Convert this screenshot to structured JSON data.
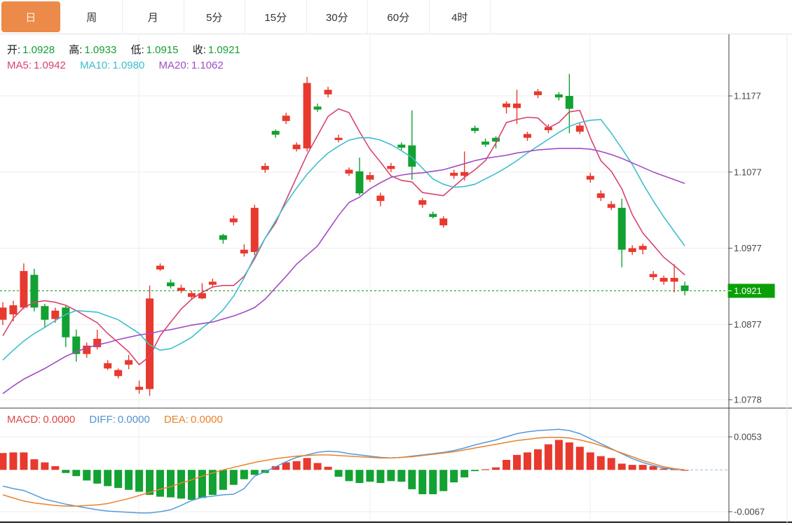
{
  "tabs": {
    "items": [
      {
        "key": "tab-day",
        "label": "日",
        "active": true
      },
      {
        "key": "tab-week",
        "label": "周",
        "active": false
      },
      {
        "key": "tab-month",
        "label": "月",
        "active": false
      },
      {
        "key": "tab-5min",
        "label": "5分",
        "active": false
      },
      {
        "key": "tab-15min",
        "label": "15分",
        "active": false
      },
      {
        "key": "tab-30min",
        "label": "30分",
        "active": false
      },
      {
        "key": "tab-60min",
        "label": "60分",
        "active": false
      },
      {
        "key": "tab-4hour",
        "label": "4时",
        "active": false
      }
    ]
  },
  "legend_main": {
    "open_label": "开:",
    "open_value": "1.0928",
    "high_label": "高:",
    "high_value": "1.0933",
    "low_label": "低:",
    "low_value": "1.0915",
    "close_label": "收:",
    "close_value": "1.0921",
    "ma5_label": "MA5:",
    "ma5_value": "1.0942",
    "ma10_label": "MA10:",
    "ma10_value": "1.0980",
    "ma20_label": "MA20:",
    "ma20_value": "1.1062"
  },
  "legend_macd": {
    "macd_label": "MACD:",
    "macd_value": "0.0000",
    "diff_label": "DIFF:",
    "diff_value": "0.0000",
    "dea_label": "DEA:",
    "dea_value": "0.0000"
  },
  "colors": {
    "up": "#e8392e",
    "down": "#12a132",
    "price_tag": "#0aa005",
    "dotted_price_line": "#1fa32a",
    "ma5": "#d8436e",
    "ma10": "#3dbecd",
    "ma20": "#a34cc4",
    "diff_line": "#5599dd",
    "dea_line": "#e8832d",
    "active_tab": "#ec8a4a"
  },
  "chart_data": {
    "type": "candlestick_with_macd",
    "title": "",
    "legend_position": "top-left overlay",
    "grid": true,
    "price_axis": {
      "side": "right",
      "ticks": [
        {
          "label": "1.1177",
          "value": 1.1177
        },
        {
          "label": "1.1077",
          "value": 1.1077
        },
        {
          "label": "1.0977",
          "value": 1.0977
        },
        {
          "label": "1.0877",
          "value": 1.0877
        },
        {
          "label": "1.0778",
          "value": 1.0778
        }
      ],
      "range": [
        1.074,
        1.1225
      ]
    },
    "macd_axis": {
      "side": "right",
      "ticks": [
        {
          "label": "0.0053",
          "value": 0.0053
        },
        {
          "label": "-0.0067",
          "value": -0.0067
        }
      ]
    },
    "current_price": {
      "label": "1.0921",
      "value": 1.0921
    },
    "candles_ohlc": [
      [
        1.0883,
        1.0906,
        1.0876,
        1.0899
      ],
      [
        1.089,
        1.0908,
        1.0881,
        1.0902
      ],
      [
        1.0899,
        1.0957,
        1.0897,
        1.0947
      ],
      [
        1.0942,
        1.095,
        1.0894,
        1.0899
      ],
      [
        1.0901,
        1.0904,
        1.0873,
        1.0883
      ],
      [
        1.0884,
        1.0899,
        1.0879,
        1.0895
      ],
      [
        1.0899,
        1.0902,
        1.0847,
        1.086
      ],
      [
        1.0861,
        1.087,
        1.0828,
        1.0838
      ],
      [
        1.0838,
        1.0853,
        1.0833,
        1.0849
      ],
      [
        1.0847,
        1.087,
        1.0844,
        1.0858
      ],
      [
        1.0819,
        1.083,
        1.0817,
        1.0826
      ],
      [
        1.0809,
        1.0819,
        1.0806,
        1.0817
      ],
      [
        1.0824,
        1.0837,
        1.0818,
        1.083
      ],
      [
        1.0791,
        1.0803,
        1.0786,
        1.0795
      ],
      [
        1.0792,
        1.0928,
        1.0783,
        1.0911
      ],
      [
        1.0949,
        1.0957,
        1.0947,
        1.0954
      ],
      [
        1.0932,
        1.0936,
        1.0924,
        1.0927
      ],
      [
        1.0921,
        1.0929,
        1.0918,
        1.0925
      ],
      [
        1.0913,
        1.0921,
        1.091,
        1.0918
      ],
      [
        1.0911,
        1.0931,
        1.091,
        1.0918
      ],
      [
        1.0929,
        1.0937,
        1.0925,
        1.0933
      ],
      [
        1.0994,
        1.0996,
        1.0983,
        1.0988
      ],
      [
        1.1011,
        1.102,
        1.1007,
        1.1016
      ],
      [
        1.097,
        1.0982,
        1.0966,
        1.0975
      ],
      [
        1.0972,
        1.1034,
        1.0968,
        1.103
      ],
      [
        1.108,
        1.1089,
        1.1076,
        1.1085
      ],
      [
        1.1131,
        1.1133,
        1.1122,
        1.1126
      ],
      [
        1.1144,
        1.1155,
        1.114,
        1.1151
      ],
      [
        1.1107,
        1.1116,
        1.1104,
        1.1113
      ],
      [
        1.1108,
        1.1202,
        1.1104,
        1.1194
      ],
      [
        1.1163,
        1.1167,
        1.1156,
        1.1159
      ],
      [
        1.1179,
        1.1189,
        1.1175,
        1.1185
      ],
      [
        1.1119,
        1.1126,
        1.1116,
        1.1122
      ],
      [
        1.1075,
        1.1083,
        1.1072,
        1.108
      ],
      [
        1.1078,
        1.1096,
        1.1046,
        1.1049
      ],
      [
        1.1067,
        1.1077,
        1.1064,
        1.1073
      ],
      [
        1.1039,
        1.105,
        1.1032,
        1.1046
      ],
      [
        1.1081,
        1.1089,
        1.1077,
        1.1085
      ],
      [
        1.1113,
        1.1116,
        1.1106,
        1.1109
      ],
      [
        1.1112,
        1.1158,
        1.1067,
        1.1084
      ],
      [
        1.1034,
        1.1043,
        1.103,
        1.104
      ],
      [
        1.1022,
        1.1025,
        1.1016,
        1.1018
      ],
      [
        1.1007,
        1.1019,
        1.1004,
        1.1016
      ],
      [
        1.1072,
        1.108,
        1.1068,
        1.1076
      ],
      [
        1.1072,
        1.1104,
        1.1066,
        1.1077
      ],
      [
        1.1135,
        1.1138,
        1.1128,
        1.1131
      ],
      [
        1.1117,
        1.1121,
        1.111,
        1.1113
      ],
      [
        1.1122,
        1.1124,
        1.1108,
        1.1117
      ],
      [
        1.1162,
        1.117,
        1.1154,
        1.1167
      ],
      [
        1.1161,
        1.1185,
        1.114,
        1.1167
      ],
      [
        1.1122,
        1.113,
        1.1118,
        1.1127
      ],
      [
        1.1178,
        1.1186,
        1.1174,
        1.1183
      ],
      [
        1.1132,
        1.114,
        1.1128,
        1.1136
      ],
      [
        1.1179,
        1.1182,
        1.1171,
        1.1175
      ],
      [
        1.1177,
        1.1206,
        1.1128,
        1.116
      ],
      [
        1.113,
        1.1141,
        1.1127,
        1.1138
      ],
      [
        1.1067,
        1.1076,
        1.1063,
        1.1072
      ],
      [
        1.1043,
        1.1053,
        1.1039,
        1.1049
      ],
      [
        1.103,
        1.1039,
        1.1027,
        1.1035
      ],
      [
        1.103,
        1.1042,
        1.0952,
        1.0975
      ],
      [
        1.0972,
        1.0981,
        1.0968,
        1.0977
      ],
      [
        1.0975,
        1.0983,
        1.0969,
        1.098
      ],
      [
        1.0939,
        1.0947,
        1.0935,
        1.0943
      ],
      [
        1.0933,
        1.0941,
        1.0929,
        1.0938
      ],
      [
        1.0933,
        1.0956,
        1.0919,
        1.0938
      ],
      [
        1.0928,
        1.0933,
        1.0915,
        1.0921
      ]
    ],
    "series": [
      {
        "name": "MA5",
        "values": [
          1.0862,
          1.0885,
          1.0899,
          1.0906,
          1.0908,
          1.0906,
          1.0902,
          1.0895,
          1.0887,
          1.0879,
          1.0865,
          1.0853,
          1.0841,
          1.0824,
          1.0835,
          1.0862,
          1.088,
          1.0897,
          1.091,
          1.0919,
          1.0926,
          1.0928,
          1.0928,
          1.094,
          1.0963,
          1.099,
          1.101,
          1.104,
          1.107,
          1.11,
          1.1125,
          1.115,
          1.116,
          1.1155,
          1.113,
          1.1107,
          1.109,
          1.1072,
          1.1066,
          1.1064,
          1.105,
          1.1048,
          1.1046,
          1.1058,
          1.107,
          1.108,
          1.1092,
          1.1115,
          1.1142,
          1.1146,
          1.1149,
          1.1148,
          1.1135,
          1.1142,
          1.1156,
          1.1158,
          1.1122,
          1.1092,
          1.1078,
          1.1055,
          1.1021,
          1.0997,
          1.0981,
          1.0965,
          1.0954,
          1.0942
        ]
      },
      {
        "name": "MA10",
        "values": [
          1.083,
          1.0843,
          1.0855,
          1.0865,
          1.0873,
          1.0882,
          1.089,
          1.0895,
          1.0894,
          1.0893,
          1.0888,
          1.0883,
          1.0874,
          1.0865,
          1.085,
          1.0843,
          1.0845,
          1.0852,
          1.086,
          1.0872,
          1.0883,
          1.0896,
          1.0914,
          1.0938,
          1.0966,
          1.099,
          1.1013,
          1.1036,
          1.1056,
          1.1074,
          1.1089,
          1.1102,
          1.1111,
          1.1119,
          1.1122,
          1.1122,
          1.1119,
          1.1113,
          1.1105,
          1.1096,
          1.1082,
          1.1068,
          1.1061,
          1.1057,
          1.1058,
          1.1061,
          1.1068,
          1.1075,
          1.1083,
          1.1092,
          1.1102,
          1.1111,
          1.112,
          1.1129,
          1.1137,
          1.1142,
          1.1145,
          1.1146,
          1.1128,
          1.1108,
          1.1087,
          1.1062,
          1.1039,
          1.1018,
          1.0999,
          1.098
        ]
      },
      {
        "name": "MA20",
        "values": [
          1.0786,
          1.0796,
          1.0805,
          1.0812,
          1.0819,
          1.0827,
          1.0835,
          1.0841,
          1.0846,
          1.085,
          1.0853,
          1.0857,
          1.086,
          1.0863,
          1.0865,
          1.0868,
          1.087,
          1.0873,
          1.0876,
          1.0878,
          1.088,
          1.0884,
          1.0888,
          1.0893,
          1.0899,
          1.091,
          1.0925,
          1.094,
          1.0956,
          1.0968,
          1.098,
          1.1,
          1.102,
          1.1037,
          1.1044,
          1.1055,
          1.1063,
          1.107,
          1.1073,
          1.1075,
          1.1076,
          1.1078,
          1.108,
          1.1084,
          1.1088,
          1.1092,
          1.1095,
          1.1097,
          1.1099,
          1.1102,
          1.1104,
          1.1106,
          1.1107,
          1.1108,
          1.1108,
          1.1108,
          1.1107,
          1.1104,
          1.11,
          1.1095,
          1.1089,
          1.1083,
          1.1077,
          1.1072,
          1.1067,
          1.1062
        ]
      }
    ],
    "macd": {
      "hist": [
        0.0027,
        0.0028,
        0.0028,
        0.0017,
        0.0012,
        0.0006,
        -0.0005,
        -0.001,
        -0.0017,
        -0.0022,
        -0.0026,
        -0.0029,
        -0.0032,
        -0.0035,
        -0.004,
        -0.0043,
        -0.0044,
        -0.0046,
        -0.0048,
        -0.0045,
        -0.004,
        -0.0032,
        -0.0024,
        -0.0015,
        -0.0008,
        -0.0005,
        0.0006,
        0.0012,
        0.0014,
        0.0019,
        0.0011,
        0.0005,
        -0.0011,
        -0.0018,
        -0.0021,
        -0.0019,
        -0.0021,
        -0.0018,
        -0.0019,
        -0.0031,
        -0.0039,
        -0.0039,
        -0.0034,
        -0.002,
        -0.0012,
        -0.0002,
        0.0001,
        0.0004,
        0.0016,
        0.0024,
        0.0028,
        0.0033,
        0.0041,
        0.0048,
        0.0044,
        0.0037,
        0.0028,
        0.0022,
        0.0019,
        0.001,
        0.0008,
        0.0008,
        0.0006,
        0.0002,
        0.0001,
        0.0
      ],
      "diff": [
        -0.0026,
        -0.003,
        -0.0033,
        -0.004,
        -0.0047,
        -0.0051,
        -0.0055,
        -0.0058,
        -0.0061,
        -0.0064,
        -0.0066,
        -0.0067,
        -0.0068,
        -0.0069,
        -0.0069,
        -0.0067,
        -0.0064,
        -0.0057,
        -0.0049,
        -0.0044,
        -0.0042,
        -0.004,
        -0.0039,
        -0.003,
        -0.001,
        -0.0003,
        0.0005,
        0.0013,
        0.002,
        0.0024,
        0.0028,
        0.003,
        0.0029,
        0.0026,
        0.0024,
        0.0022,
        0.002,
        0.0019,
        0.002,
        0.0022,
        0.0024,
        0.0026,
        0.0028,
        0.0031,
        0.0035,
        0.004,
        0.0044,
        0.0048,
        0.0053,
        0.0058,
        0.0061,
        0.0063,
        0.0064,
        0.0065,
        0.0063,
        0.0058,
        0.005,
        0.0042,
        0.0034,
        0.0026,
        0.0018,
        0.0012,
        0.0007,
        0.0003,
        0.0001,
        0.0
      ],
      "dea": [
        -0.004,
        -0.0045,
        -0.005,
        -0.0053,
        -0.0055,
        -0.0057,
        -0.0058,
        -0.0058,
        -0.0057,
        -0.0056,
        -0.0054,
        -0.005,
        -0.0046,
        -0.0041,
        -0.0036,
        -0.0031,
        -0.0027,
        -0.0021,
        -0.0016,
        -0.001,
        -0.0005,
        0.0,
        0.0004,
        0.0008,
        0.0012,
        0.0015,
        0.0018,
        0.002,
        0.0022,
        0.0023,
        0.0024,
        0.0024,
        0.0023,
        0.0022,
        0.0021,
        0.002,
        0.0019,
        0.0019,
        0.002,
        0.0021,
        0.0023,
        0.0025,
        0.0027,
        0.0029,
        0.0032,
        0.0035,
        0.0038,
        0.0041,
        0.0044,
        0.0047,
        0.0049,
        0.0051,
        0.0052,
        0.0052,
        0.0051,
        0.0048,
        0.0044,
        0.0039,
        0.0033,
        0.0027,
        0.0021,
        0.0015,
        0.001,
        0.0005,
        0.0002,
        0.0
      ]
    }
  }
}
